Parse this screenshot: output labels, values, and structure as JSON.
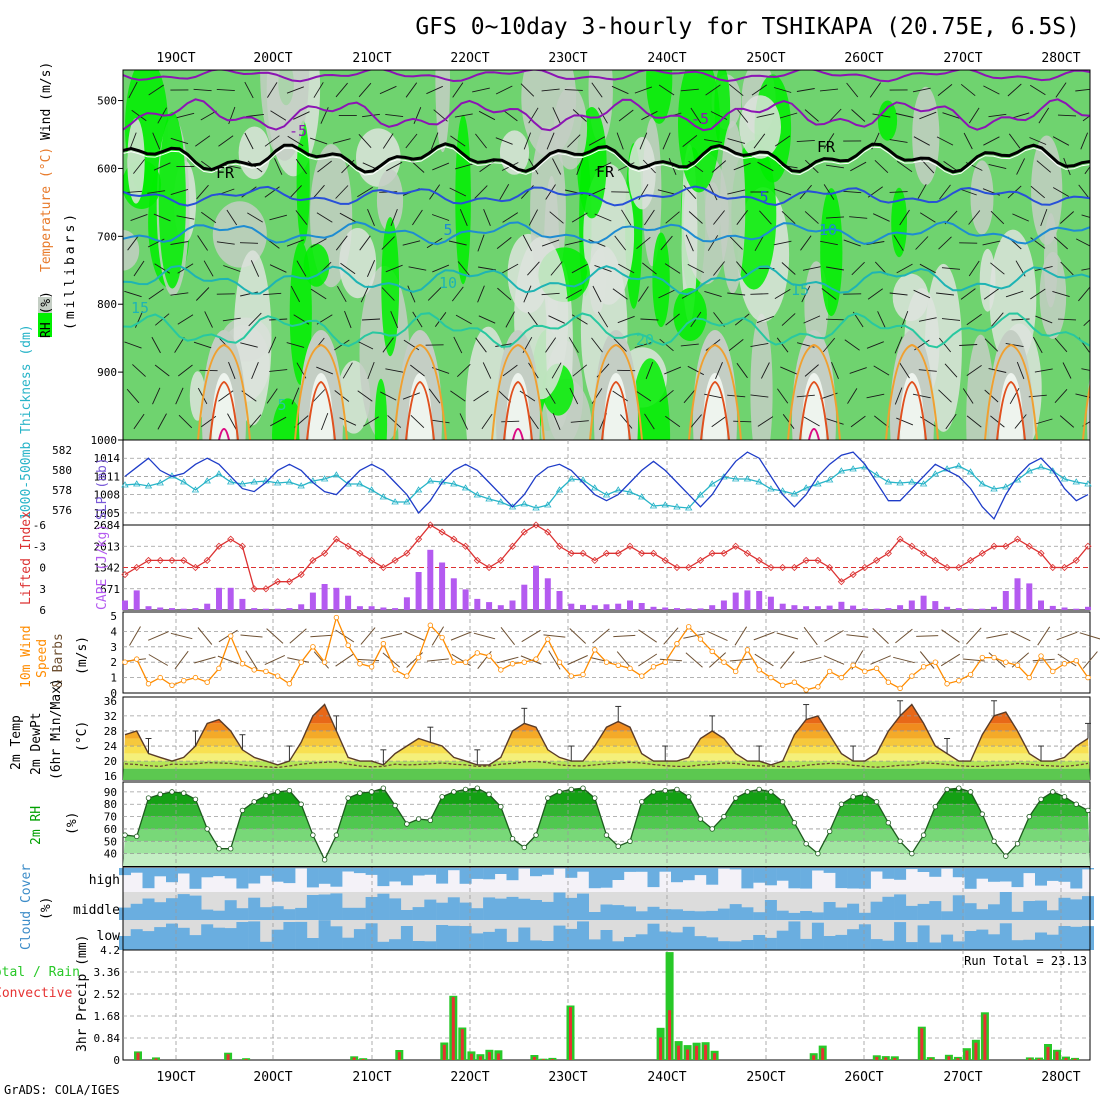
{
  "header": {
    "title": "GFS 0~10day 3-hourly for TSHIKAPA (20.75E, 6.5S)",
    "footer": "GrADS: COLA/IGES",
    "run_total_label": "Run Total = 23.13"
  },
  "dates": [
    "19OCT",
    "20OCT",
    "21OCT",
    "22OCT",
    "23OCT",
    "24OCT",
    "25OCT",
    "26OCT",
    "27OCT",
    "28OCT"
  ],
  "colors": {
    "rh_light": "#dde3dd",
    "rh_mid": "#c4cec4",
    "rh_green": "#6fd36f",
    "rh_bright": "#00ef00",
    "fr": "#000000",
    "neg5": "#8c14b4",
    "c5": "#2850d8",
    "c10": "#1e8cd2",
    "c15": "#1eb4b4",
    "c20": "#28c8a0",
    "warm": "#f0a030",
    "hot": "#e0501e",
    "vhot": "#dc0a82",
    "slp": "#1e3cc8",
    "thick": "#28b4c8",
    "li": "#dc3232",
    "cape": "#b45af0",
    "wind": "#ff8c00",
    "barb": "#6e5032",
    "rh2m": "#00a000",
    "cloud": "#6aaee0",
    "cloud_bg": "#dcdcdc",
    "precip_total": "#28c828",
    "precip_conv": "#e63232"
  },
  "panels": {
    "upper": {
      "ylabel_rh": "RH (%)",
      "ylabel_temp": "Temperature (°C)",
      "ylabel_wind": "Wind (m/s)",
      "ylabel_units": "(millibars)",
      "yticks": [
        "500",
        "600",
        "700",
        "800",
        "900",
        "1000"
      ],
      "contour_labels": [
        "-5",
        "-5",
        "FR",
        "FR",
        "FR",
        "5",
        "5",
        "10",
        "10",
        "15",
        "15",
        "20",
        "5"
      ]
    },
    "slp": {
      "ylabel_left": "1000-500mb Thickness (dm)",
      "ylabel_right": "SLP (mb)",
      "left_ticks": [
        "582",
        "580",
        "578",
        "576"
      ],
      "right_ticks": [
        "1014",
        "1011",
        "1008",
        "1005"
      ]
    },
    "li": {
      "ylabel_left": "Lifted Index",
      "ylabel_right": "CAPE (J/kg)",
      "left_ticks": [
        "-6",
        "-3",
        "0",
        "3",
        "6"
      ],
      "right_ticks": [
        "2684",
        "2013",
        "1342",
        "671"
      ]
    },
    "wind": {
      "ylabel_1": "10m Wind",
      "ylabel_2": "Speed",
      "ylabel_3": "& Barbs",
      "units": "(m/s)",
      "ticks": [
        "5",
        "4",
        "3",
        "2",
        "1",
        "0"
      ]
    },
    "temp": {
      "ylabel_1": "2m Temp",
      "ylabel_2": "2m DewPt",
      "ylabel_3": "(6hr Min/Max)",
      "units": "(°C)",
      "ticks": [
        "36",
        "32",
        "28",
        "24",
        "20",
        "16"
      ]
    },
    "rh": {
      "ylabel": "2m RH",
      "units": "(%)",
      "ticks": [
        "90",
        "80",
        "70",
        "60",
        "50",
        "40"
      ]
    },
    "cloud": {
      "ylabel": "Cloud Cover",
      "units": "(%)",
      "levels": [
        "high",
        "middle",
        "low"
      ]
    },
    "precip": {
      "ylabel_total": "Total / Rain",
      "ylabel_conv": "Convective",
      "ylabel_3hr": "3hr Precip (mm)",
      "ticks": [
        "4.2",
        "3.36",
        "2.52",
        "1.68",
        "0.84",
        "0"
      ]
    }
  },
  "chart_data": [
    {
      "type": "line",
      "name": "slp",
      "title": "SLP (mb)",
      "ylim": [
        1003,
        1017
      ],
      "values": [
        1011,
        1012.5,
        1014,
        1012,
        1011,
        1011.5,
        1013,
        1014,
        1013,
        1011,
        1009,
        1008.5,
        1010,
        1012,
        1013,
        1012,
        1010,
        1008.5,
        1008,
        1010,
        1012,
        1013,
        1012,
        1010,
        1008,
        1005,
        1007,
        1010,
        1012,
        1013,
        1012,
        1010,
        1008,
        1006,
        1008,
        1011,
        1012.5,
        1013,
        1012,
        1010,
        1008,
        1007,
        1008,
        1010,
        1012,
        1013.5,
        1012,
        1010,
        1008,
        1006,
        1008,
        1011,
        1013.5,
        1015,
        1014,
        1011,
        1008,
        1006,
        1008,
        1011,
        1013,
        1014.5,
        1015,
        1013,
        1010,
        1007,
        1007,
        1009,
        1011,
        1013,
        1012,
        1011,
        1009,
        1006,
        1004,
        1008,
        1011,
        1013,
        1014,
        1012,
        1009,
        1007,
        1008
      ]
    },
    {
      "type": "line",
      "name": "thickness",
      "title": "1000-500mb Thickness (dm)",
      "ylim": [
        574.5,
        583
      ],
      "values": [
        578.5,
        578.6,
        578.4,
        578.7,
        579.4,
        578.8,
        578.0,
        578.9,
        579.6,
        578.8,
        578.6,
        578.8,
        578.9,
        578.7,
        578.8,
        578.4,
        578.9,
        579.1,
        579.5,
        578.6,
        578.6,
        578.0,
        577.3,
        576.8,
        576.8,
        578.0,
        578.9,
        578.8,
        578.6,
        578.2,
        577.5,
        577.1,
        576.8,
        576.3,
        576.6,
        576.2,
        576.5,
        578.0,
        579.1,
        579.0,
        578.2,
        577.5,
        578.0,
        577.8,
        577.3,
        576.4,
        576.5,
        576.3,
        576.2,
        577.5,
        578.6,
        579.3,
        579.1,
        579.1,
        578.8,
        578.1,
        577.9,
        577.6,
        578.2,
        578.6,
        579.0,
        579.9,
        580.1,
        580.3,
        579.5,
        578.8,
        578.7,
        578.8,
        578.6,
        579.6,
        580.1,
        580.4,
        579.8,
        578.6,
        578.1,
        578.3,
        579.0,
        579.9,
        580.3,
        579.9,
        579.1,
        578.8,
        578.6
      ]
    },
    {
      "type": "line",
      "name": "lifted_index",
      "title": "Lifted Index",
      "ylim": [
        6,
        -6
      ],
      "values": [
        1,
        0,
        -1,
        -1,
        -1,
        -1,
        0,
        -1,
        -3,
        -4,
        -3,
        3,
        3,
        2,
        2,
        1,
        -1,
        -2,
        -4,
        -3,
        -2,
        -1,
        0,
        -1,
        -2,
        -4,
        -6,
        -5,
        -4,
        -3,
        -1,
        0,
        -1,
        -3,
        -5,
        -6,
        -5,
        -3,
        -2,
        -2,
        -1,
        -2,
        -2,
        -3,
        -2,
        -2,
        -1,
        0,
        0,
        -1,
        -2,
        -2,
        -3,
        -2,
        -1,
        0,
        0,
        0,
        -1,
        -1,
        0,
        2,
        1,
        0,
        -1,
        -2,
        -4,
        -3,
        -2,
        -1,
        0,
        0,
        -1,
        -2,
        -3,
        -3,
        -4,
        -3,
        -2,
        0,
        0,
        -1,
        -3
      ]
    },
    {
      "type": "bar",
      "name": "cape",
      "title": "CAPE (J/kg)",
      "ylim": [
        0,
        2684
      ],
      "values": [
        300,
        620,
        120,
        80,
        60,
        40,
        60,
        200,
        700,
        700,
        350,
        60,
        40,
        40,
        60,
        180,
        550,
        820,
        700,
        450,
        120,
        120,
        80,
        60,
        400,
        1200,
        1900,
        1500,
        1000,
        650,
        350,
        250,
        150,
        300,
        800,
        1400,
        1000,
        600,
        200,
        160,
        150,
        180,
        200,
        300,
        220,
        100,
        80,
        60,
        50,
        50,
        150,
        300,
        550,
        620,
        600,
        420,
        200,
        150,
        120,
        120,
        140,
        260,
        140,
        50,
        40,
        60,
        150,
        300,
        450,
        280,
        100,
        60,
        40,
        40,
        100,
        600,
        1000,
        840,
        300,
        130,
        80,
        40,
        100
      ]
    },
    {
      "type": "line",
      "name": "wind_speed",
      "title": "10m Wind Speed",
      "units": "m/s",
      "ylim": [
        0,
        5
      ],
      "values": [
        2,
        2.2,
        0.6,
        1,
        0.5,
        0.8,
        1,
        0.7,
        1.6,
        3.7,
        1.9,
        1.5,
        1.4,
        1.1,
        0.6,
        2,
        3,
        2,
        4.9,
        3.1,
        1.9,
        1.7,
        3.2,
        1.5,
        1.1,
        2.3,
        4.4,
        3.6,
        2,
        2,
        2.6,
        2.4,
        1.5,
        1.9,
        2,
        2.2,
        3.5,
        2,
        1.1,
        1.2,
        2.8,
        2,
        1.8,
        1.6,
        1.1,
        1.7,
        2,
        3.2,
        4.3,
        3.5,
        2.7,
        2,
        1.4,
        2.8,
        1.5,
        1,
        0.5,
        0.7,
        0.2,
        0.4,
        1.4,
        1,
        1.8,
        1.4,
        1.6,
        0.7,
        0.3,
        1.1,
        1.7,
        2,
        0.6,
        0.8,
        1.2,
        2.3,
        2.3,
        2,
        1.8,
        1,
        2.4,
        1.4,
        1.9,
        2.1,
        1
      ]
    },
    {
      "type": "area",
      "name": "temp_2m",
      "title": "2m Temp",
      "units": "°C",
      "ylim": [
        15,
        37
      ],
      "values": [
        27,
        28,
        22,
        21,
        20,
        21,
        24,
        30,
        31,
        28,
        23,
        21,
        20,
        19,
        20,
        25,
        32,
        35,
        28,
        21,
        20,
        20,
        19,
        22,
        24,
        26,
        25,
        24,
        21,
        20,
        19,
        19,
        21,
        28,
        30,
        29,
        23,
        21,
        20,
        20,
        24,
        29,
        30.5,
        29,
        22,
        20,
        20,
        20,
        21,
        26,
        28,
        26,
        22,
        20,
        20,
        19,
        20,
        27,
        31,
        32,
        27,
        22,
        20,
        20,
        22,
        28,
        32,
        35,
        30,
        24,
        22,
        20,
        20,
        27,
        32,
        33,
        28,
        22,
        20,
        20,
        21,
        24,
        26
      ]
    },
    {
      "type": "line",
      "name": "dewpt_2m",
      "title": "2m DewPt",
      "units": "°C",
      "ylim": [
        15,
        37
      ],
      "values": [
        19.3,
        19.1,
        18.8,
        18.6,
        19.2,
        19.1,
        19.3,
        19.6,
        19.5,
        19.4,
        19.0,
        18.7,
        18.5,
        18.3,
        18.7,
        19.2,
        19.5,
        19.7,
        19.8,
        19.2,
        18.7,
        18.5,
        18.6,
        19.2,
        19.0,
        19.1,
        19.3,
        19.5,
        19.2,
        19.0,
        18.6,
        18.7,
        19.2,
        19.4,
        19.8,
        19.9,
        19.6,
        19.0,
        18.8,
        18.7,
        19.0,
        19.3,
        19.5,
        19.7,
        19.5,
        19.1,
        18.8,
        18.6,
        18.6,
        19.0,
        19.2,
        19.5,
        19.4,
        19.0,
        18.7,
        18.7,
        18.5,
        18.5,
        18.9,
        19.2,
        19.4,
        19.3,
        18.9,
        18.6,
        18.4,
        18.6,
        18.9,
        19.0,
        19.5,
        19.4,
        19.1,
        18.8,
        18.6,
        18.6,
        18.9,
        19.0,
        19.4,
        19.2,
        18.9,
        18.7,
        18.6,
        18.9,
        19.4
      ]
    },
    {
      "type": "area",
      "name": "rh_2m",
      "title": "2m RH",
      "units": "%",
      "ylim": [
        30,
        98
      ],
      "values": [
        55,
        54,
        85,
        88,
        90,
        89,
        84,
        60,
        44,
        44,
        75,
        82,
        87,
        90,
        91,
        80,
        55,
        35,
        55,
        85,
        89,
        90,
        93,
        79,
        64,
        68,
        67,
        86,
        90,
        92,
        93,
        88,
        78,
        52,
        45,
        55,
        85,
        90,
        92,
        93,
        85,
        55,
        46,
        50,
        82,
        90,
        91,
        92,
        86,
        68,
        60,
        70,
        85,
        90,
        92,
        90,
        82,
        65,
        48,
        40,
        58,
        80,
        86,
        88,
        82,
        65,
        50,
        40,
        55,
        78,
        92,
        93,
        90,
        72,
        50,
        38,
        48,
        70,
        84,
        90,
        86,
        80,
        75
      ]
    },
    {
      "type": "bar",
      "name": "cloud_cover",
      "series": [
        {
          "name": "high"
        },
        {
          "name": "middle"
        },
        {
          "name": "low"
        }
      ]
    },
    {
      "type": "bar",
      "name": "precip_3hr",
      "title": "3hr Precip (mm)",
      "ylim": [
        0,
        4.2
      ],
      "series": [
        {
          "name": "Total / Rain",
          "values": [
            0,
            0.33,
            0,
            0.1,
            0,
            0,
            0,
            0,
            0,
            0,
            0,
            0.28,
            0,
            0.07,
            0,
            0,
            0,
            0,
            0,
            0,
            0,
            0,
            0,
            0,
            0,
            0.14,
            0.07,
            0,
            0,
            0,
            0.38,
            0,
            0,
            0,
            0,
            0.67,
            2.45,
            1.24,
            0.33,
            0.22,
            0.39,
            0.37,
            0,
            0,
            0,
            0.19,
            0.05,
            0.08,
            0,
            2.08,
            0,
            0,
            0,
            0,
            0,
            0,
            0,
            0,
            0,
            1.23,
            4.12,
            0.72,
            0.57,
            0.66,
            0.68,
            0.35,
            0,
            0,
            0,
            0,
            0,
            0,
            0,
            0,
            0,
            0,
            0.26,
            0.55,
            0,
            0,
            0,
            0,
            0,
            0.18,
            0.15,
            0.14,
            0,
            0,
            1.27,
            0.11,
            0,
            0.2,
            0.12,
            0.45,
            0.77,
            1.82,
            0,
            0,
            0,
            0,
            0.1,
            0.09,
            0.61,
            0.39,
            0.13,
            0.08,
            0
          ]
        },
        {
          "name": "Convective",
          "values": [
            0,
            0.28,
            0,
            0.06,
            0,
            0,
            0,
            0,
            0,
            0,
            0,
            0.22,
            0,
            0.04,
            0,
            0,
            0,
            0,
            0,
            0,
            0,
            0,
            0,
            0,
            0,
            0.1,
            0.04,
            0,
            0,
            0,
            0.3,
            0,
            0,
            0,
            0,
            0.58,
            2.4,
            1.18,
            0.24,
            0.14,
            0.3,
            0.25,
            0,
            0,
            0,
            0.12,
            0.03,
            0.04,
            0,
            2.02,
            0,
            0,
            0,
            0,
            0,
            0,
            0,
            0,
            0,
            0.86,
            1.9,
            0.55,
            0.4,
            0.54,
            0.58,
            0.26,
            0,
            0,
            0,
            0,
            0,
            0,
            0,
            0,
            0,
            0,
            0.18,
            0.45,
            0,
            0,
            0,
            0,
            0,
            0.12,
            0.1,
            0.08,
            0,
            0,
            1.21,
            0.06,
            0,
            0.14,
            0.07,
            0.36,
            0.66,
            1.74,
            0,
            0,
            0,
            0,
            0.06,
            0.05,
            0.5,
            0.32,
            0.08,
            0.05,
            0
          ]
        }
      ]
    }
  ]
}
